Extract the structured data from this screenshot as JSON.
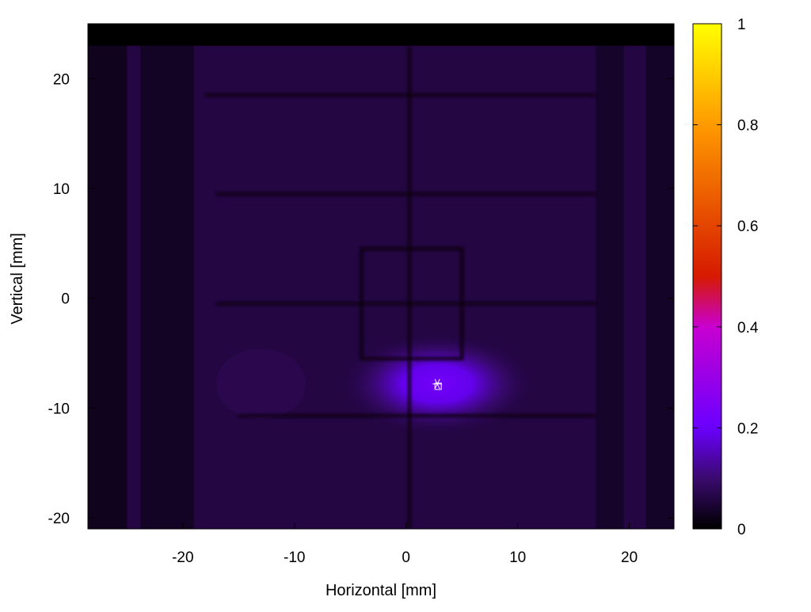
{
  "chart_data": {
    "type": "heatmap",
    "title": "",
    "xlabel": "Horizontal [mm]",
    "ylabel": "Vertical [mm]",
    "xlim": [
      -28.5,
      24
    ],
    "ylim": [
      -21,
      25
    ],
    "x_ticks": [
      -20,
      -10,
      0,
      10,
      20
    ],
    "y_ticks": [
      -20,
      -10,
      0,
      10,
      20
    ],
    "x_tick_labels": [
      "-20",
      "-10",
      "0",
      "10",
      "20"
    ],
    "y_tick_labels": [
      "-20",
      "-10",
      "0",
      "10",
      "20"
    ],
    "colorbar": {
      "range": [
        0,
        1
      ],
      "ticks": [
        0,
        0.2,
        0.4,
        0.6,
        0.8,
        1
      ],
      "tick_labels": [
        "0",
        "0.2",
        "0.4",
        "0.6",
        "0.8",
        "1"
      ],
      "colormap": [
        {
          "value": 0.0,
          "color": "#000000"
        },
        {
          "value": 0.1,
          "color": "#3a0a6e"
        },
        {
          "value": 0.2,
          "color": "#6a00ff"
        },
        {
          "value": 0.4,
          "color": "#c800d0"
        },
        {
          "value": 0.5,
          "color": "#d61a00"
        },
        {
          "value": 0.8,
          "color": "#ff9a00"
        },
        {
          "value": 1.0,
          "color": "#ffff00"
        }
      ]
    },
    "background_intensity": 0.06,
    "top_band_intensity": 0.0,
    "top_band_ymin": 23,
    "hot_spot": {
      "x": 2.8,
      "y": -7.8,
      "peak_intensity": 0.22,
      "sigma_x": 4.5,
      "sigma_y": 2.4
    },
    "dark_lines": {
      "vertical": [
        {
          "x": 0.3,
          "y0": -21,
          "y1": 23
        }
      ],
      "horizontal": [
        {
          "y": 18.5,
          "x0": -18,
          "x1": 17
        },
        {
          "y": 9.5,
          "x0": -17,
          "x1": 17
        },
        {
          "y": -0.5,
          "x0": -17,
          "x1": 17
        },
        {
          "y": -10.7,
          "x0": -15,
          "x1": 17
        }
      ],
      "rectangle": {
        "x0": -4,
        "x1": 5,
        "y0": -5.5,
        "y1": 4.5
      }
    },
    "marker": {
      "x": 2.8,
      "y": -7.8,
      "symbols": [
        "cross",
        "square"
      ]
    }
  }
}
